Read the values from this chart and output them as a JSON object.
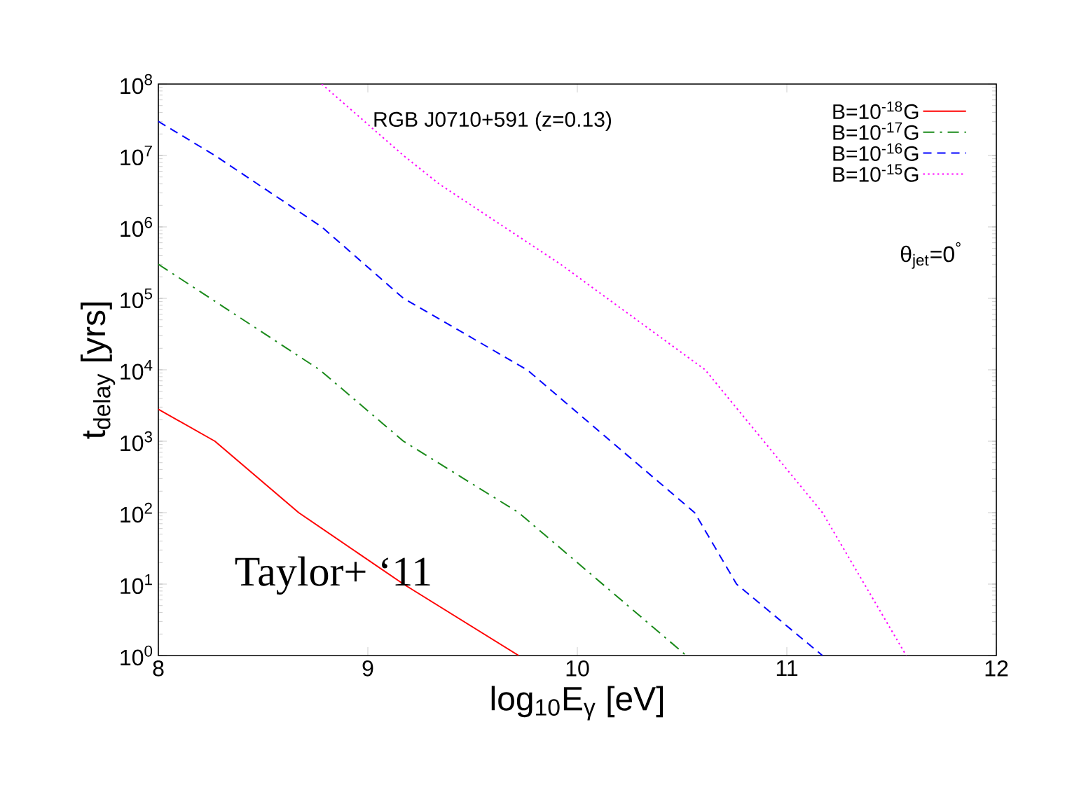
{
  "chart_data": {
    "type": "line",
    "xlabel": "log$_{10}$E$_{γ}$ [eV]",
    "ylabel": "t$_{delay}$ [yrs]",
    "annotations": [
      "RGB J0710+591 (z=0.13)",
      "θ$_{jet}$=0$^{°}$",
      "Taylor+ ‘11"
    ],
    "series": [
      {
        "name": "B=10$^{-18}$G",
        "color": "#ff0000",
        "line_style": "solid",
        "x": [
          8,
          8.27,
          8.67,
          9.17,
          9.72
        ],
        "values": [
          2800,
          1000,
          100,
          10,
          1
        ]
      },
      {
        "name": "B=10$^{-17}$G",
        "color": "#1a8a1a",
        "line_style": "dashdot",
        "x": [
          8,
          8.77,
          9.17,
          9.72,
          10.05,
          10.52
        ],
        "values": [
          300000,
          10000,
          1000,
          100,
          15,
          1
        ]
      },
      {
        "name": "B=10$^{-16}$G",
        "color": "#0000ff",
        "line_style": "dashed",
        "x": [
          8,
          8.27,
          8.78,
          9.17,
          9.76,
          10.56,
          10.76,
          11.17
        ],
        "values": [
          30000000,
          10000000,
          1000000,
          100000,
          10000,
          100,
          10,
          1
        ]
      },
      {
        "name": "B=10$^{-15}$G",
        "color": "#ff00ff",
        "line_style": "dotted",
        "x": [
          8.78,
          9.17,
          9.34,
          9.92,
          10.61,
          11.17,
          11.57
        ],
        "values": [
          100000000,
          10000000,
          4000000,
          300000,
          10000,
          100,
          1
        ]
      }
    ],
    "xlim": [
      8,
      12
    ],
    "xticks": [
      8,
      9,
      10,
      11,
      12
    ],
    "ylim": [
      1,
      100000000
    ],
    "yticks": [
      {
        "value": 1,
        "label": "10$^{0}$"
      },
      {
        "value": 10,
        "label": "10$^{1}$"
      },
      {
        "value": 100,
        "label": "10$^{2}$"
      },
      {
        "value": 1000,
        "label": "10$^{3}$"
      },
      {
        "value": 10000,
        "label": "10$^{4}$"
      },
      {
        "value": 100000,
        "label": "10$^{5}$"
      },
      {
        "value": 1000000,
        "label": "10$^{6}$"
      },
      {
        "value": 10000000,
        "label": "10$^{7}$"
      },
      {
        "value": 100000000,
        "label": "10$^{8}$"
      }
    ],
    "log": "y",
    "legend": "top right",
    "grid": false,
    "marker": "none"
  }
}
